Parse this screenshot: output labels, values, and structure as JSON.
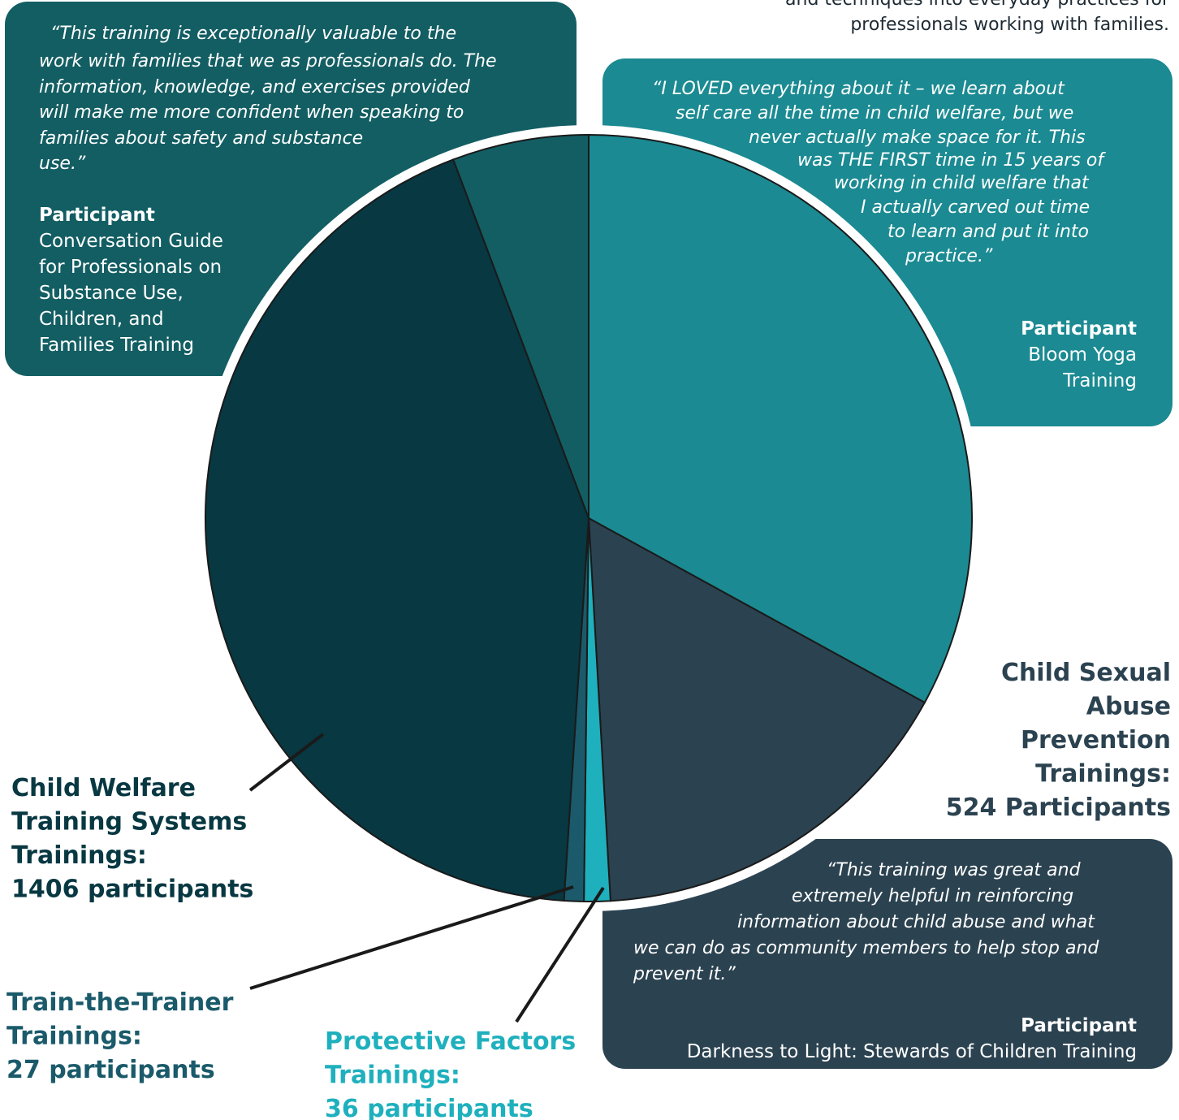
{
  "header": {
    "lines": [
      "and techniques into everyday practices for",
      "professionals working with families."
    ]
  },
  "quotes": [
    {
      "lines": [
        "“This training is exceptionally valuable to the",
        "work with families that we as professionals do. The",
        "information, knowledge, and exercises provided",
        "will make me more confident when speaking to",
        "families about safety and substance",
        "use.”"
      ],
      "attribution": "Participant",
      "source_lines": [
        "Conversation Guide",
        "for Professionals on",
        "Substance Use,",
        "Children, and",
        "Families Training"
      ]
    },
    {
      "lines": [
        "“I LOVED everything about it – we learn about",
        "self care all the time in child welfare, but we",
        "never actually make space for it. This",
        "was THE FIRST time in 15 years of",
        "working in child welfare that",
        "I actually carved out time",
        "to learn and put it into",
        "practice.”"
      ],
      "attribution": "Participant",
      "source_lines": [
        "Bloom Yoga",
        "Training"
      ]
    },
    {
      "lines": [
        "“This training was great and",
        "extremely helpful in reinforcing",
        "information about child abuse and what",
        "we can do as community members to help stop and",
        "prevent it.”"
      ],
      "attribution": "Participant",
      "source_lines": [
        "Darkness to Light: Stewards of Children Training"
      ]
    }
  ],
  "chart_data": {
    "type": "pie",
    "categories": [
      null,
      "Child Sexual Abuse Prevention Trainings:",
      "Protective Factors Trainings:",
      "Train-the-Trainer Trainings:",
      "Child Welfare Training Systems Trainings:",
      null
    ],
    "values": [
      1073,
      524,
      36,
      27,
      1406,
      187
    ],
    "value_labels": [
      null,
      "524 Participants",
      "36 participants",
      "27 participants",
      "1406 participants",
      null
    ],
    "colors": [
      "#1b8a92",
      "#2b4250",
      "#1fb0bd",
      "#1a5a6a",
      "#083842",
      "#135e63"
    ]
  }
}
